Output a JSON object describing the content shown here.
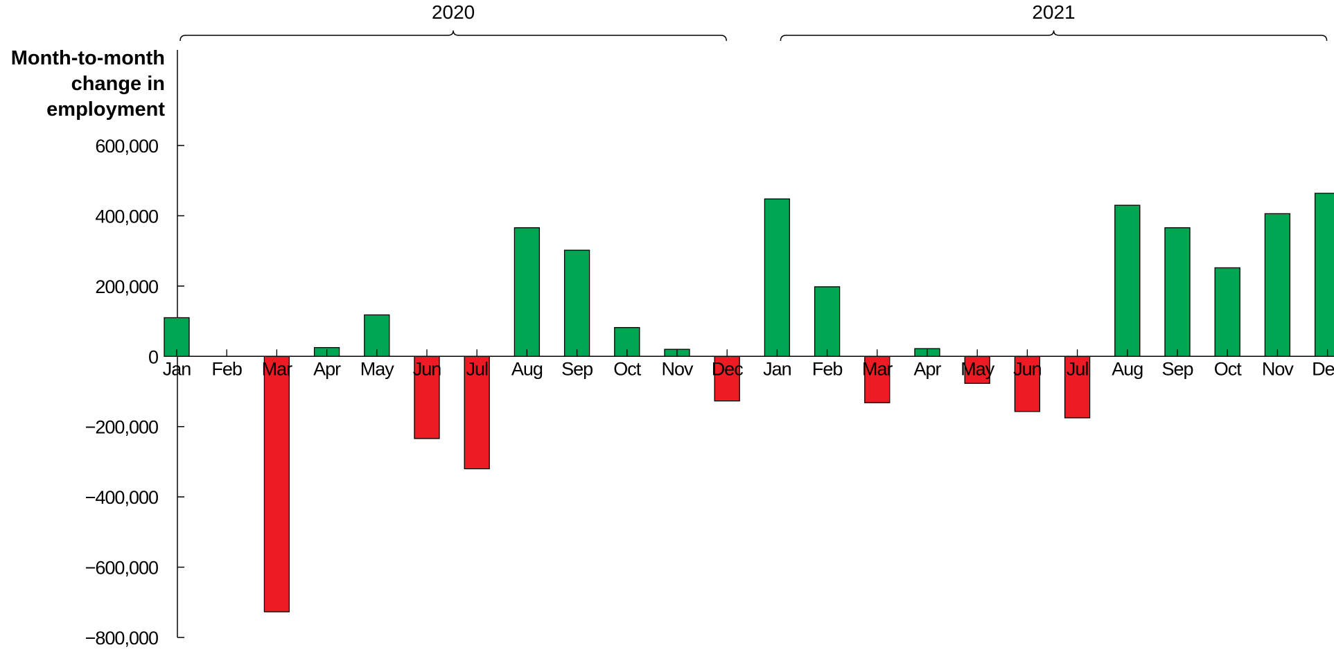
{
  "chart_data": {
    "type": "bar",
    "title": "",
    "xlabel": "",
    "ylabel_lines": [
      "Month-to-month",
      "change in",
      "employment"
    ],
    "year_groups": [
      {
        "label": "2020",
        "start": 0,
        "end": 11
      },
      {
        "label": "2021",
        "start": 12,
        "end": 23
      }
    ],
    "categories": [
      "Jan",
      "Feb",
      "Mar",
      "Apr",
      "May",
      "Jun",
      "Jul",
      "Aug",
      "Sep",
      "Oct",
      "Nov",
      "Dec",
      "Jan",
      "Feb",
      "Mar",
      "Apr",
      "May",
      "Jun",
      "Jul",
      "Aug",
      "Sep",
      "Oct",
      "Nov",
      "Dec"
    ],
    "values": [
      110000,
      0,
      -727000,
      25000,
      118000,
      -234000,
      -320000,
      366000,
      302000,
      82000,
      20000,
      -127000,
      448000,
      198000,
      -132000,
      22000,
      -77000,
      -157000,
      -175000,
      430000,
      366000,
      252000,
      406000,
      464000
    ],
    "ylim": [
      -800000,
      600000
    ],
    "yticks": [
      600000,
      400000,
      200000,
      0,
      -200000,
      -400000,
      -600000,
      -800000
    ],
    "ytick_labels": [
      "600,000",
      "400,000",
      "200,000",
      "0",
      "−200,000",
      "−400,000",
      "−600,000",
      "−800,000"
    ],
    "colors": {
      "positive": "#00a651",
      "negative": "#ed1c24",
      "outline": "#000000"
    },
    "grid": false,
    "legend": "none"
  }
}
